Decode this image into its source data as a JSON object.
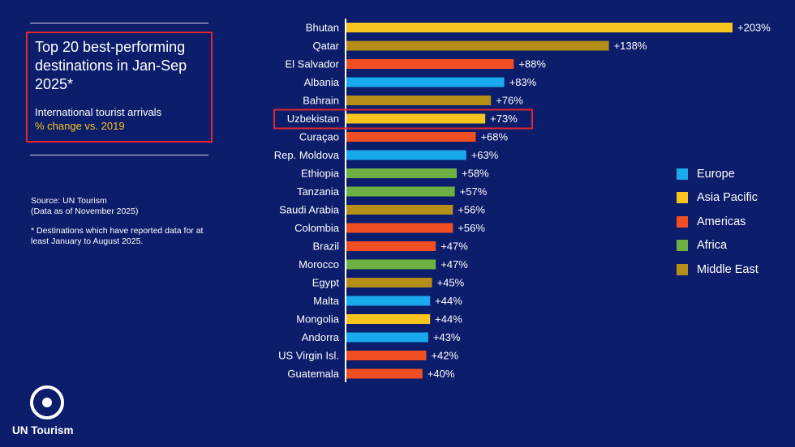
{
  "title": "Top 20 best-performing destinations in Jan-Sep 2025*",
  "subtitle_line1": "International tourist arrivals",
  "subtitle_line2": "% change vs. 2019",
  "source_line1": "Source: UN Tourism",
  "source_line2": "(Data as of November 2025)",
  "footnote": "* Destinations which have reported data for at least January to August 2025.",
  "logo_text": "UN Tourism",
  "colors": {
    "Europe": "#1aa9ec",
    "Asia Pacific": "#f7c51e",
    "Americas": "#f04e23",
    "Africa": "#6eb043",
    "Middle East": "#b58e18",
    "highlight": "#e0282e"
  },
  "chart_data": {
    "type": "bar",
    "orientation": "horizontal",
    "categories": [
      "Bhutan",
      "Qatar",
      "El Salvador",
      "Albania",
      "Bahrain",
      "Uzbekistan",
      "Curaçao",
      "Rep. Moldova",
      "Ethiopia",
      "Tanzania",
      "Saudi Arabia",
      "Colombia",
      "Brazil",
      "Morocco",
      "Egypt",
      "Malta",
      "Mongolia",
      "Andorra",
      "US Virgin Isl.",
      "Guatemala"
    ],
    "values": [
      203,
      138,
      88,
      83,
      76,
      73,
      68,
      63,
      58,
      57,
      56,
      56,
      47,
      47,
      45,
      44,
      44,
      43,
      42,
      40
    ],
    "value_labels": [
      "+203%",
      "+138%",
      "+88%",
      "+83%",
      "+76%",
      "+73%",
      "+68%",
      "+63%",
      "+58%",
      "+57%",
      "+56%",
      "+56%",
      "+47%",
      "+47%",
      "+45%",
      "+44%",
      "+44%",
      "+43%",
      "+42%",
      "+40%"
    ],
    "regions": [
      "Asia Pacific",
      "Middle East",
      "Americas",
      "Europe",
      "Middle East",
      "Asia Pacific",
      "Americas",
      "Europe",
      "Africa",
      "Africa",
      "Middle East",
      "Americas",
      "Americas",
      "Africa",
      "Middle East",
      "Europe",
      "Asia Pacific",
      "Europe",
      "Americas",
      "Americas"
    ],
    "highlighted": "Uzbekistan",
    "legend": [
      "Europe",
      "Asia Pacific",
      "Americas",
      "Africa",
      "Middle East"
    ],
    "legend_placement": "right",
    "xlim": [
      0,
      203
    ],
    "grid": false
  }
}
